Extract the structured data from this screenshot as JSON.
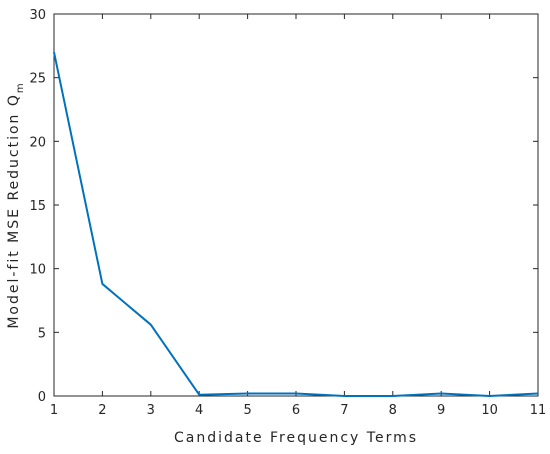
{
  "chart_data": {
    "type": "line",
    "title": "",
    "xlabel": "Candidate Frequency Terms",
    "ylabel": "Model-fit MSE Reduction Q",
    "ylabel_subscript": "m",
    "xlim": [
      1,
      11
    ],
    "ylim": [
      0,
      30
    ],
    "xticks": [
      1,
      2,
      3,
      4,
      5,
      6,
      7,
      8,
      9,
      10,
      11
    ],
    "yticks": [
      0,
      5,
      10,
      15,
      20,
      25,
      30
    ],
    "grid": false,
    "series": [
      {
        "color": "#0072bd",
        "x": [
          1,
          2,
          3,
          4,
          5,
          6,
          7,
          8,
          9,
          10,
          11
        ],
        "y": [
          27.0,
          8.8,
          5.6,
          0.1,
          0.2,
          0.2,
          0.0,
          0.0,
          0.2,
          0.0,
          0.2
        ]
      }
    ]
  }
}
